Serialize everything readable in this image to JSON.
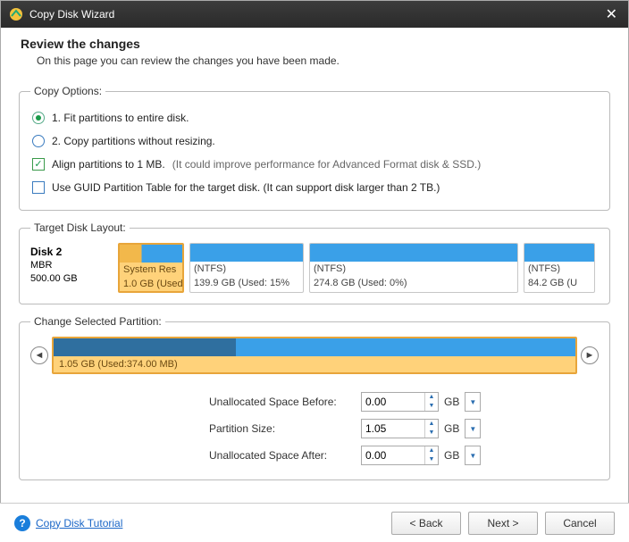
{
  "window": {
    "title": "Copy Disk Wizard"
  },
  "header": {
    "title": "Review the changes",
    "subtitle": "On this page you can review the changes you have been made."
  },
  "copyOptions": {
    "legend": "Copy Options:",
    "radio1": "1. Fit partitions to entire disk.",
    "radio2": "2. Copy partitions without resizing.",
    "check1": "Align partitions to 1 MB.",
    "check1note": "(It could improve performance for Advanced Format disk & SSD.)",
    "check2": "Use GUID Partition Table for the target disk. (It can support disk larger than 2 TB.)",
    "selectedRadio": 1,
    "alignChecked": true,
    "guidChecked": false
  },
  "targetLayout": {
    "legend": "Target Disk Layout:",
    "disk": {
      "name": "Disk 2",
      "type": "MBR",
      "size": "500.00 GB"
    },
    "partitions": [
      {
        "line1": "System Res",
        "line2": "1.0 GB (Used",
        "widthPx": 74,
        "usedPct": 35,
        "color": "#3aa0e8",
        "usedColor": "#f2b84b",
        "selected": true
      },
      {
        "line1": "(NTFS)",
        "line2": "139.9 GB (Used: 15%",
        "widthPx": 128,
        "usedPct": 15,
        "color": "#3aa0e8",
        "usedColor": "#3aa0e8",
        "selected": false
      },
      {
        "line1": "(NTFS)",
        "line2": "274.8 GB (Used: 0%)",
        "widthPx": 234,
        "usedPct": 0,
        "color": "#3aa0e8",
        "usedColor": "#3aa0e8",
        "selected": false
      },
      {
        "line1": "(NTFS)",
        "line2": "84.2 GB (U",
        "widthPx": 80,
        "usedPct": 0,
        "color": "#3aa0e8",
        "usedColor": "#3aa0e8",
        "selected": false
      }
    ]
  },
  "changeSelected": {
    "legend": "Change Selected Partition:",
    "usedPct": 35,
    "label": "1.05 GB (Used:374.00 MB)",
    "barUsedColor": "#2f6f9f",
    "barFreeColor": "#3aa0e8"
  },
  "form": {
    "beforeLabel": "Unallocated Space Before:",
    "beforeValue": "0.00",
    "sizeLabel": "Partition Size:",
    "sizeValue": "1.05",
    "afterLabel": "Unallocated Space After:",
    "afterValue": "0.00",
    "unit": "GB"
  },
  "footer": {
    "helpText": "Copy Disk Tutorial",
    "back": "< Back",
    "next": "Next >",
    "cancel": "Cancel"
  }
}
